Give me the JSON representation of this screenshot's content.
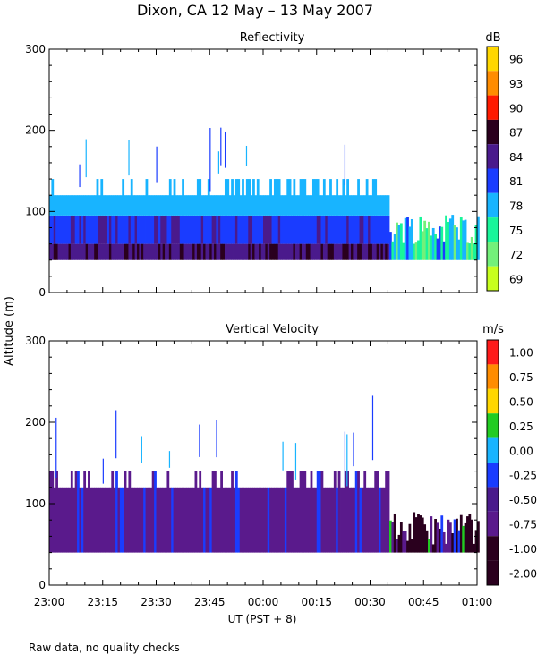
{
  "chart_data": {
    "type": "heatmap",
    "title": "Dixon, CA 12 May – 13 May 2007",
    "xlabel": "UT  (PST + 8)",
    "ylabel": "Altitude (m)",
    "footnote": "Raw data, no quality checks",
    "x_range": [
      "23:00",
      "01:00"
    ],
    "x_ticks": [
      "23:00",
      "23:15",
      "23:30",
      "23:45",
      "00:00",
      "00:15",
      "00:30",
      "00:45",
      "01:00"
    ],
    "y_range": [
      0,
      300
    ],
    "y_ticks": [
      "0",
      "100",
      "200",
      "300"
    ],
    "panels": [
      {
        "title": "Reflectivity",
        "unit": "dB",
        "colorbar": {
          "labels": [
            "96",
            "93",
            "90",
            "87",
            "84",
            "81",
            "78",
            "75",
            "72",
            "69"
          ],
          "colors": [
            "#ffd700",
            "#ff8c00",
            "#ff1a00",
            "#2a001e",
            "#4a1a8c",
            "#1a3cff",
            "#18b4ff",
            "#19f59a",
            "#73f07a",
            "#c8ff1e"
          ]
        },
        "echo_layers": [
          {
            "time_range": [
              "23:00",
              "00:35"
            ],
            "altitude_range": [
              40,
              60
            ],
            "value": "84-87 dB"
          },
          {
            "time_range": [
              "23:00",
              "00:35"
            ],
            "altitude_range": [
              60,
              95
            ],
            "value": "81 dB"
          },
          {
            "time_range": [
              "23:00",
              "00:35"
            ],
            "altitude_range": [
              95,
              120
            ],
            "value": "78 dB"
          },
          {
            "time_range": [
              "00:35",
              "01:00"
            ],
            "altitude_range": [
              40,
              80
            ],
            "value": "75-81 dB"
          }
        ]
      },
      {
        "title": "Vertical Velocity",
        "unit": "m/s",
        "colorbar": {
          "labels": [
            "1.00",
            "0.75",
            "0.50",
            "0.25",
            "0.00",
            "-0.25",
            "-0.50",
            "-0.75",
            "-1.00",
            "-2.00"
          ],
          "colors": [
            "#ff1a1a",
            "#ff8c00",
            "#ffd700",
            "#22cc22",
            "#18b4ff",
            "#1a3cff",
            "#4a1a8c",
            "#5a1a8c",
            "#2a001e"
          ]
        },
        "echo_layers": [
          {
            "time_range": [
              "23:00",
              "00:35"
            ],
            "altitude_range": [
              40,
              120
            ],
            "value": "-0.75 to -1.00 m/s"
          },
          {
            "time_range": [
              "00:35",
              "01:00"
            ],
            "altitude_range": [
              40,
              80
            ],
            "value": "-1.00 to -2.00 m/s"
          }
        ]
      }
    ]
  }
}
